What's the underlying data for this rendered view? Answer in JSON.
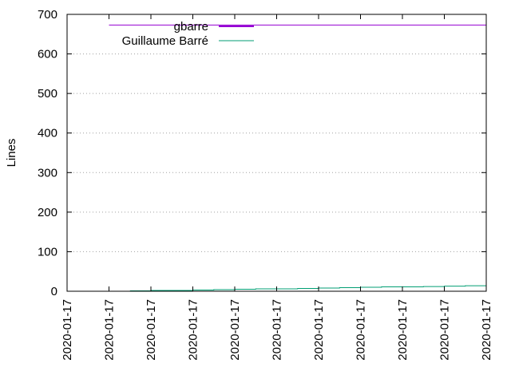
{
  "chart_data": {
    "type": "line",
    "title": "",
    "xlabel": "",
    "ylabel": "Lines",
    "ylim": [
      0,
      700
    ],
    "yticks": [
      0,
      100,
      200,
      300,
      400,
      500,
      600,
      700
    ],
    "categories": [
      "2020-01-17",
      "2020-01-17",
      "2020-01-17",
      "2020-01-17",
      "2020-01-17",
      "2020-01-17",
      "2020-01-17",
      "2020-01-17",
      "2020-01-17",
      "2020-01-17",
      "2020-01-17"
    ],
    "grid": "horizontal-dotted",
    "legend": "top-left",
    "series": [
      {
        "name": "gbarre",
        "color": "#9400d3",
        "x": [
          1,
          10
        ],
        "y": [
          673,
          673
        ]
      },
      {
        "name": "Guillaume Barré",
        "color": "#009e73",
        "x": [
          1.5,
          2,
          2.5,
          3,
          3.5,
          4,
          4.5,
          5,
          5.5,
          6,
          6.5,
          7,
          7.5,
          8,
          8.5,
          9,
          9.5,
          10
        ],
        "y": [
          1,
          2,
          2,
          3,
          4,
          5,
          6,
          6,
          7,
          8,
          9,
          10,
          11,
          11,
          12,
          13,
          14,
          15
        ]
      }
    ]
  }
}
